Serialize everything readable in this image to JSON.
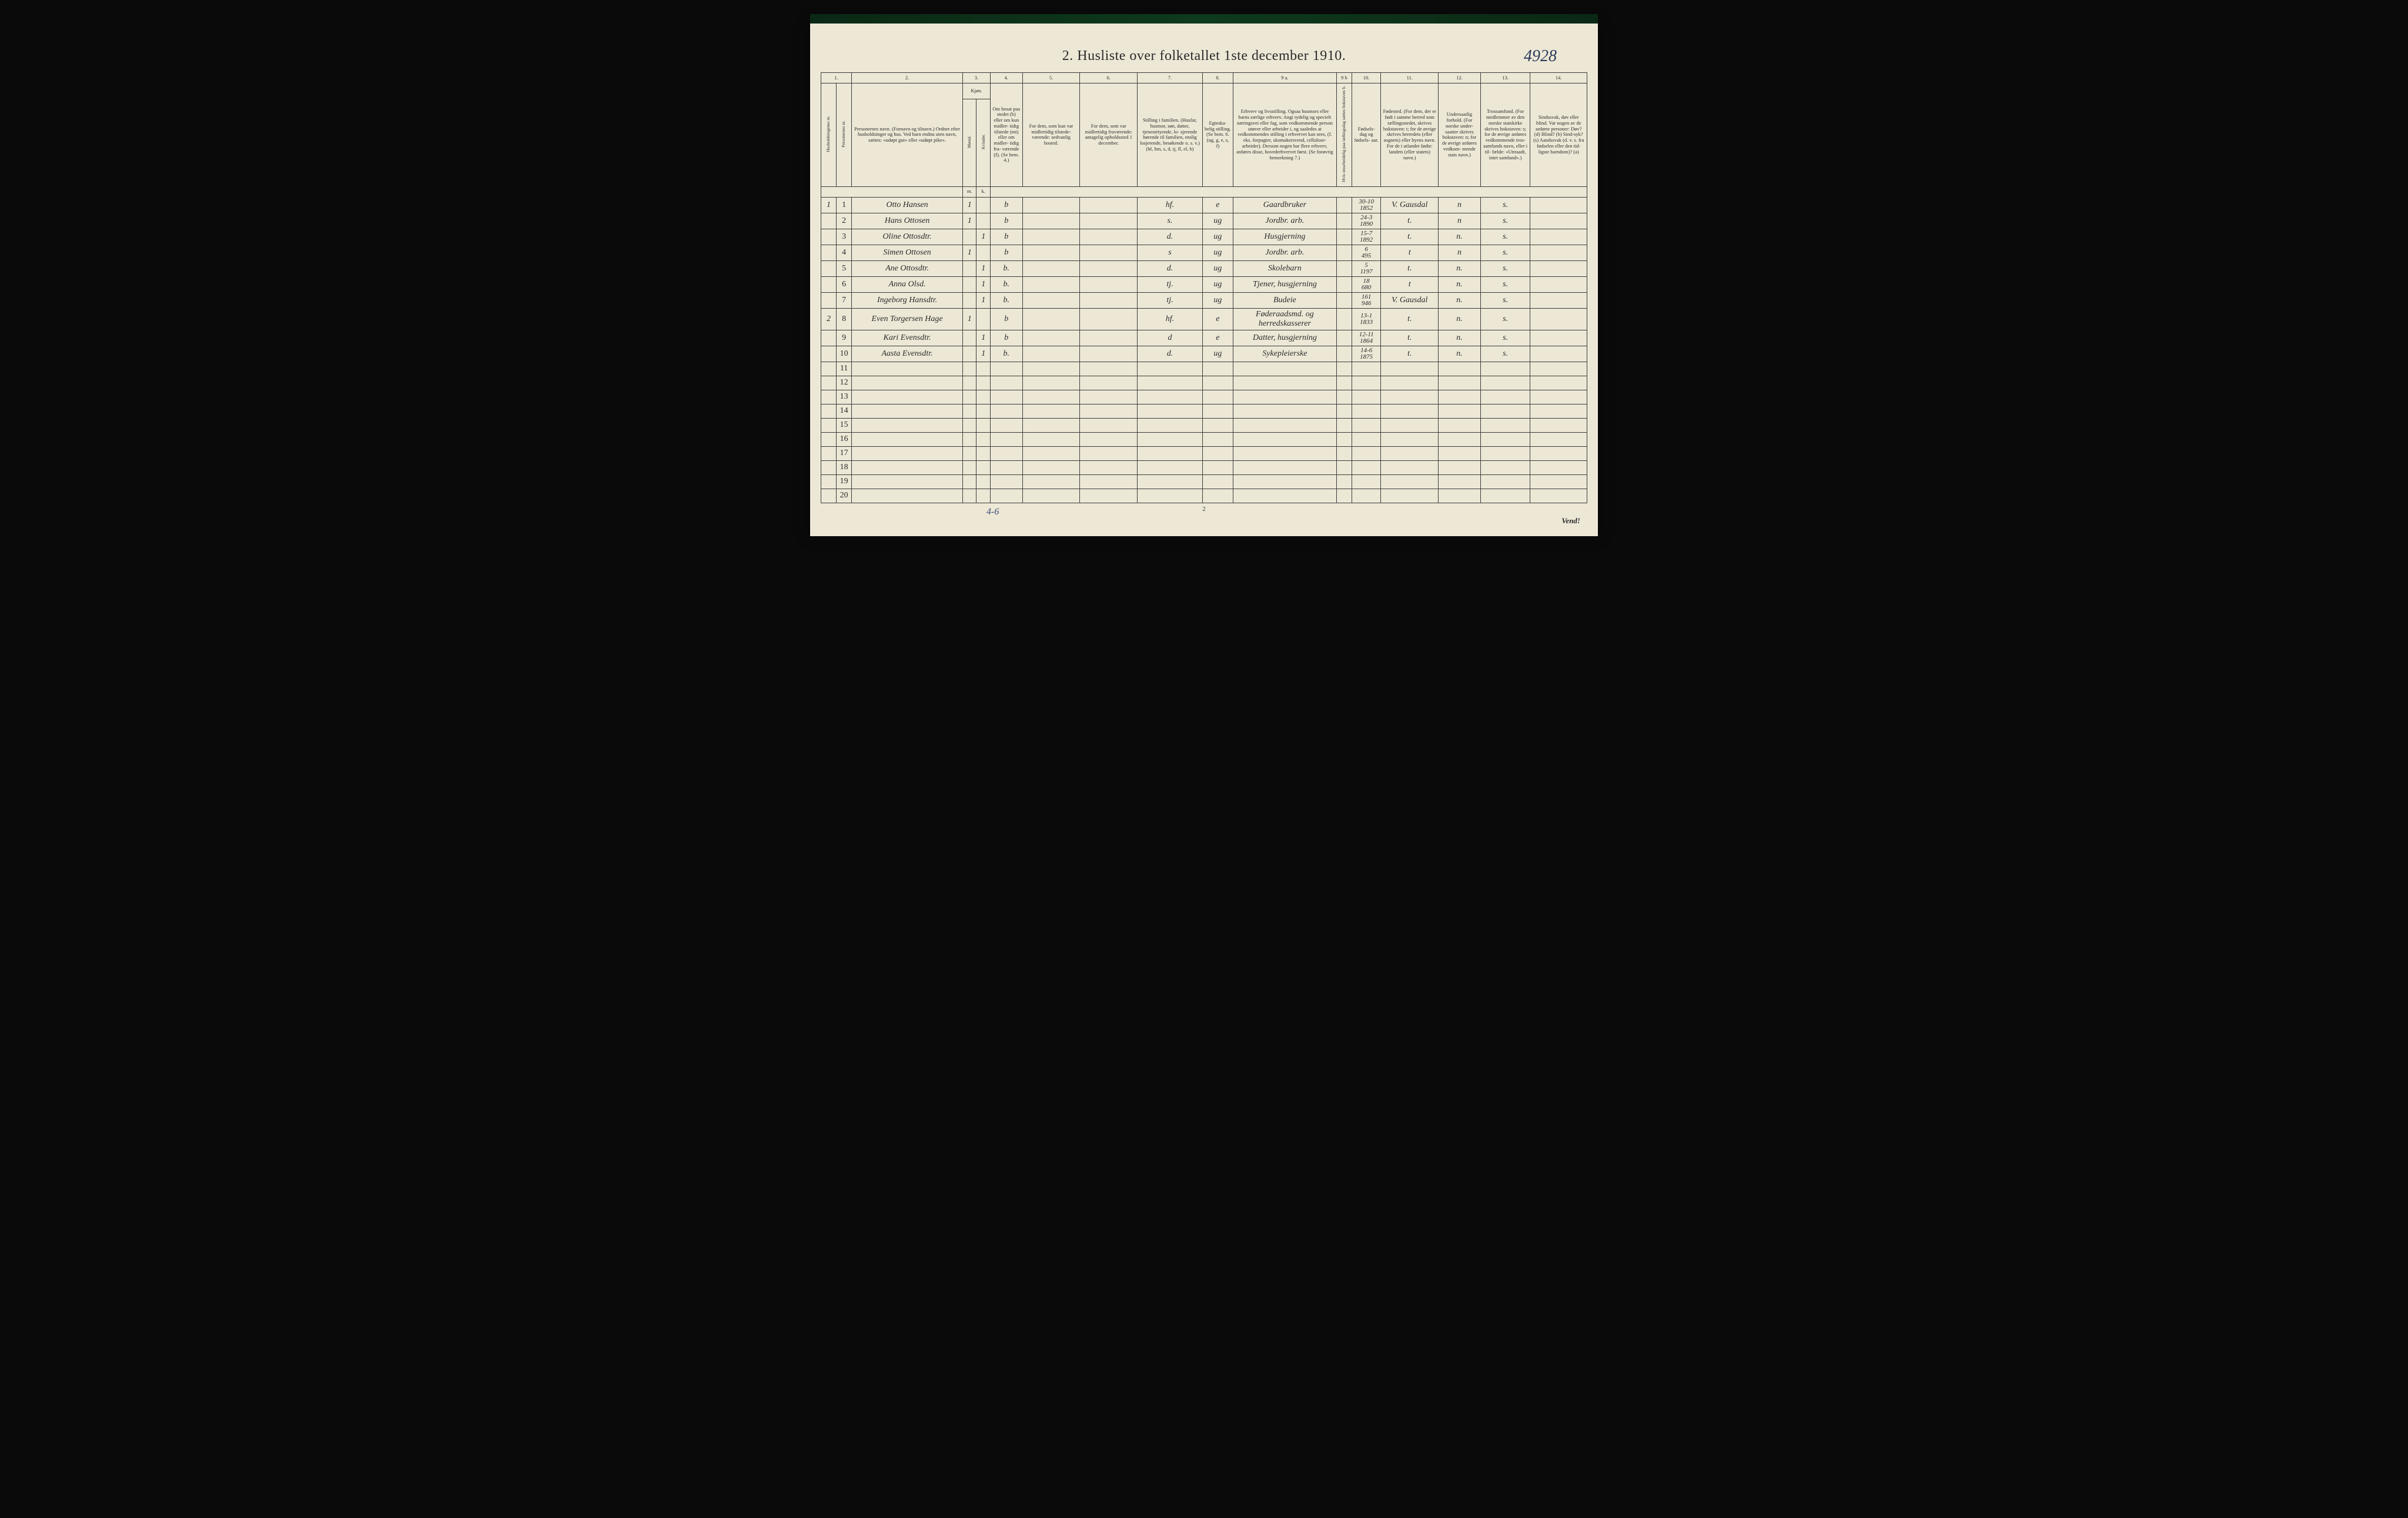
{
  "annotation_topright": "4928",
  "title": "2.  Husliste over folketallet 1ste december 1910.",
  "footer_left": "4-6",
  "footer_center": "2",
  "footer_right": "Vend!",
  "columns": {
    "nums": [
      "1.",
      "2.",
      "3.",
      "4.",
      "5.",
      "6.",
      "7.",
      "8.",
      "9 a.",
      "9 b",
      "10.",
      "11.",
      "12.",
      "13.",
      "14."
    ],
    "c1a": "Husholdningenes nr.",
    "c1b": "Personernes nr.",
    "c2": "Personernes navn.\n(Fornavn og tilnavn.)\nOrdnet efter husholdninger og hus.\nVed barn endnu uten navn, sættes: «udøpt gut»\neller «udøpt pike».",
    "c3": "Kjøn.",
    "c3a": "Mænd.",
    "c3b": "Kvinder.",
    "c3m": "m.",
    "c3k": "k.",
    "c4": "Om bosat\npaa stedet\n(b) eller om\nkun midler-\ntidig tilstede\n(mt) eller\nom midler-\ntidig fra-\nværende (f).\n(Se bem. 4.)",
    "c5": "For dem, som kun var\nmidlertidig tilstede-\nværende:\nsedvanlig bosted.",
    "c6": "For dem, som var\nmidlertidig\nfraværende:\nantagelig opholdssted\n1 december.",
    "c7": "Stilling i familien.\n(Husfar, husmor, søn,\ndatter, tjenestetyende, lo-\nsjerende hørende til familien,\nenslig losjerende, besøkende\no. s. v.)\n(hf, hm, s, d, tj, fl,\nel, b)",
    "c8": "Egteska-\nbelig\nstilling.\n(Se bem. 6.\n(ug, g,\ne, s, f)",
    "c9a": "Erhverv og livsstilling.\nOgsaa husmors eller barns særlige erhverv.\nAngi tydelig og specielt næringsvei eller fag, som\nvedkommende person utøver eller arbeider i,\nog saaledes at vedkommendes stilling i erhvervet kan\nsees, (f. eks. forpagter, skomakersvend, cellulose-\narbeider). Dersom nogen har flere erhverv,\nanføres disse, hovederhvervet først.\n(Se forøvrig bemerkning 7.)",
    "c9b": "Hvis utearbeidelig\npaa tællingsdag sættes\nbokstaven  b.",
    "c10": "Fødsels-\ndag\nog\nfødsels-\naar.",
    "c11": "Fødested.\n(For dem, der er født\ni samme herred som\ntællingsstedet,\nskrives bokstaven: t;\nfor de øvrige skrives\nherredets (eller sognets)\neller byens navn.\nFor de i utlandet fødte:\nlandets (eller statets)\nnavn.)",
    "c12": "Undersaatlig\nforhold.\n(For norske under-\nsaatter skrives\nbokstaven: n;\nfor de øvrige\nanføres vedkom-\nmende stats navn.)",
    "c13": "Trossamfund.\n(For medlemmer av\nden norske statskirke\nskrives bokstaven: s;\nfor de øvrige anføres\nvedkommende tros-\nsamfunds navn, eller i til-\nfælde: «Uttraadt, intet\nsamfund».)",
    "c14": "Sindssvak, døv\neller blind.\nVar nogen av de anførte\npersoner:\nDøv?       (d)\nBlind?     (b)\nSind-syk? (s)\nAandssvak (d. v. s. fra\nfødselen eller den tid-\nligste barndom)? (a)"
  },
  "col_widths": {
    "c1a": "2%",
    "c1b": "2%",
    "c2": "14.5%",
    "c3a": "1.8%",
    "c3b": "1.8%",
    "c4": "4.2%",
    "c5": "7.5%",
    "c6": "7.5%",
    "c7": "8.5%",
    "c8": "4%",
    "c9a": "13.5%",
    "c9b": "2%",
    "c10": "3.8%",
    "c11": "7.5%",
    "c12": "5.5%",
    "c13": "6.5%",
    "c14": "7.4%"
  },
  "rows": [
    {
      "hh": "1",
      "pn": "1",
      "name": "Otto Hansen",
      "m": "1",
      "k": "",
      "bmt": "b",
      "c5": "",
      "c6": "",
      "fam": "hf.",
      "eg": "e",
      "erhv": "Gaardbruker",
      "b9b": "",
      "dob": "30-10\n1852",
      "fsted": "V. Gausdal",
      "us": "n",
      "tro": "s.",
      "c14": ""
    },
    {
      "hh": "",
      "pn": "2",
      "name": "Hans Ottosen",
      "m": "1",
      "k": "",
      "bmt": "b",
      "c5": "",
      "c6": "",
      "fam": "s.",
      "eg": "ug",
      "erhv": "Jordbr. arb.",
      "b9b": "",
      "dob": "24-3\n1890",
      "fsted": "t.",
      "us": "n",
      "tro": "s.",
      "c14": ""
    },
    {
      "hh": "",
      "pn": "3",
      "name": "Oline Ottosdtr.",
      "m": "",
      "k": "1",
      "bmt": "b",
      "c5": "",
      "c6": "",
      "fam": "d.",
      "eg": "ug",
      "erhv": "Husgjerning",
      "b9b": "",
      "dob": "15-7\n1892",
      "fsted": "t.",
      "us": "n.",
      "tro": "s.",
      "c14": ""
    },
    {
      "hh": "",
      "pn": "4",
      "name": "Simen Ottosen",
      "m": "1",
      "k": "",
      "bmt": "b",
      "c5": "",
      "c6": "",
      "fam": "s",
      "eg": "ug",
      "erhv": "Jordbr. arb.",
      "b9b": "",
      "dob": "6\n495",
      "fsted": "t",
      "us": "n",
      "tro": "s.",
      "c14": ""
    },
    {
      "hh": "",
      "pn": "5",
      "name": "Ane Ottosdtr.",
      "m": "",
      "k": "1",
      "bmt": "b.",
      "c5": "",
      "c6": "",
      "fam": "d.",
      "eg": "ug",
      "erhv": "Skolebarn",
      "b9b": "",
      "dob": "5\n1197",
      "fsted": "t.",
      "us": "n.",
      "tro": "s.",
      "c14": ""
    },
    {
      "hh": "",
      "pn": "6",
      "name": "Anna Olsd.",
      "m": "",
      "k": "1",
      "bmt": "b.",
      "c5": "",
      "c6": "",
      "fam": "tj.",
      "eg": "ug",
      "erhv": "Tjener, husgjerning",
      "b9b": "",
      "dob": "18\n680",
      "fsted": "t",
      "us": "n.",
      "tro": "s.",
      "c14": ""
    },
    {
      "hh": "",
      "pn": "7",
      "name": "Ingeborg Hansdtr.",
      "m": "",
      "k": "1",
      "bmt": "b.",
      "c5": "",
      "c6": "",
      "fam": "tj.",
      "eg": "ug",
      "erhv": "Budeie",
      "b9b": "",
      "dob": "161\n946",
      "fsted": "V. Gausdal",
      "us": "n.",
      "tro": "s.",
      "c14": ""
    },
    {
      "hh": "2",
      "pn": "8",
      "name": "Even Torgersen Hage",
      "m": "1",
      "k": "",
      "bmt": "b",
      "c5": "",
      "c6": "",
      "fam": "hf.",
      "eg": "e",
      "erhv": "Føderaadsmd. og herredskasserer",
      "b9b": "",
      "dob": "13-1\n1833",
      "fsted": "t.",
      "us": "n.",
      "tro": "s.",
      "c14": ""
    },
    {
      "hh": "",
      "pn": "9",
      "name": "Kari Evensdtr.",
      "m": "",
      "k": "1",
      "bmt": "b",
      "c5": "",
      "c6": "",
      "fam": "d",
      "eg": "e",
      "erhv": "Datter, husgjerning",
      "b9b": "",
      "dob": "12-11\n1864",
      "fsted": "t.",
      "us": "n.",
      "tro": "s.",
      "c14": ""
    },
    {
      "hh": "",
      "pn": "10",
      "name": "Aasta Evensdtr.",
      "m": "",
      "k": "1",
      "bmt": "b.",
      "c5": "",
      "c6": "",
      "fam": "d.",
      "eg": "ug",
      "erhv": "Sykepleierske",
      "b9b": "",
      "dob": "14-6\n1875",
      "fsted": "t.",
      "us": "n.",
      "tro": "s.",
      "c14": ""
    }
  ],
  "empty_rows": [
    11,
    12,
    13,
    14,
    15,
    16,
    17,
    18,
    19,
    20
  ],
  "colors": {
    "page_bg": "#ede8d6",
    "ink": "#2a2a2a",
    "handwriting": "#1a1a2a",
    "pencil_blue": "#3a4a7a",
    "border": "#3a3a3a",
    "outer_bg": "#0a0a0a"
  },
  "typography": {
    "title_size_pt": 24,
    "header_size_pt": 8.5,
    "handwriting_size_pt": 16,
    "title_family": "serif",
    "handwriting_family": "cursive"
  }
}
